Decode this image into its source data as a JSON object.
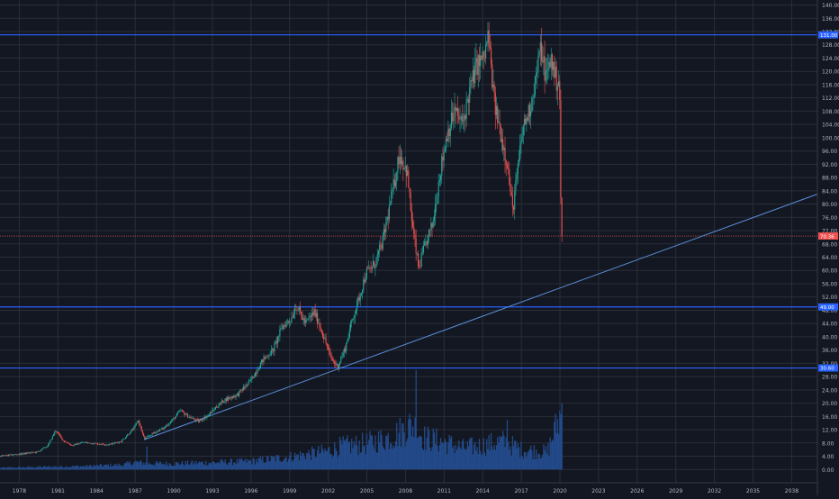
{
  "chart_data": {
    "type": "candlestick",
    "x_tick_labels": [
      "1978",
      "1981",
      "1984",
      "1987",
      "1990",
      "1993",
      "1996",
      "1999",
      "2002",
      "2005",
      "2008",
      "2011",
      "2014",
      "2017",
      "2020",
      "2023",
      "2026",
      "2029",
      "2032",
      "2035",
      "2038"
    ],
    "x_range": [
      1976.5,
      2040.0
    ],
    "price_axis": {
      "tick_labels": [
        "140.00",
        "136.00",
        "132.00",
        "128.00",
        "124.00",
        "120.00",
        "116.00",
        "112.00",
        "108.00",
        "104.00",
        "100.00",
        "96.00",
        "92.00",
        "88.00",
        "84.00",
        "80.00",
        "76.00",
        "72.00",
        "68.00",
        "64.00",
        "60.00",
        "56.00",
        "52.00",
        "48.00",
        "44.00",
        "40.00",
        "36.00",
        "32.00",
        "28.00",
        "24.00",
        "20.00",
        "16.00",
        "12.00",
        "8.00",
        "4.00",
        "0.00"
      ],
      "range": [
        -4.0,
        141.5
      ]
    },
    "horizontal_levels": [
      {
        "value": 131.0,
        "label": "131.00",
        "color": "#2962ff"
      },
      {
        "value": 49.0,
        "label": "49.00",
        "color": "#2962ff"
      },
      {
        "value": 30.6,
        "label": "30.60",
        "color": "#2962ff"
      }
    ],
    "current_price": {
      "value": 70.36,
      "label": "70.36",
      "color": "#ef5350"
    },
    "trendline": {
      "points": [
        [
          1987.7,
          9.0
        ],
        [
          2040.0,
          83.0
        ]
      ],
      "color": "#5b8fd6"
    },
    "price_path": [
      [
        1976.5,
        4.0
      ],
      [
        1978.0,
        4.6
      ],
      [
        1979.5,
        5.3
      ],
      [
        1980.3,
        7.2
      ],
      [
        1980.9,
        11.8
      ],
      [
        1981.5,
        8.7
      ],
      [
        1982.2,
        7.2
      ],
      [
        1983.0,
        8.2
      ],
      [
        1984.0,
        7.8
      ],
      [
        1985.0,
        7.5
      ],
      [
        1986.0,
        8.5
      ],
      [
        1987.0,
        12.5
      ],
      [
        1987.3,
        15.0
      ],
      [
        1987.8,
        9.2
      ],
      [
        1988.5,
        11.0
      ],
      [
        1989.3,
        12.5
      ],
      [
        1990.0,
        15.0
      ],
      [
        1990.6,
        17.8
      ],
      [
        1991.2,
        16.0
      ],
      [
        1992.0,
        14.5
      ],
      [
        1992.7,
        16.2
      ],
      [
        1993.3,
        18.5
      ],
      [
        1994.0,
        21.0
      ],
      [
        1995.0,
        22.5
      ],
      [
        1996.0,
        26.5
      ],
      [
        1997.0,
        33.0
      ],
      [
        1997.8,
        36.0
      ],
      [
        1998.5,
        43.0
      ],
      [
        1999.2,
        45.5
      ],
      [
        1999.6,
        49.5
      ],
      [
        2000.3,
        44.0
      ],
      [
        2001.0,
        47.5
      ],
      [
        2001.6,
        41.5
      ],
      [
        2002.3,
        33.5
      ],
      [
        2002.8,
        31.0
      ],
      [
        2003.4,
        36.5
      ],
      [
        2003.9,
        44.5
      ],
      [
        2004.5,
        52.0
      ],
      [
        2005.0,
        59.0
      ],
      [
        2005.7,
        62.0
      ],
      [
        2006.3,
        68.5
      ],
      [
        2007.0,
        82.0
      ],
      [
        2007.6,
        95.0
      ],
      [
        2008.2,
        90.0
      ],
      [
        2008.6,
        74.0
      ],
      [
        2009.1,
        60.5
      ],
      [
        2009.6,
        67.5
      ],
      [
        2010.2,
        74.0
      ],
      [
        2010.7,
        88.0
      ],
      [
        2011.3,
        101.0
      ],
      [
        2011.9,
        108.0
      ],
      [
        2012.5,
        104.0
      ],
      [
        2013.0,
        113.0
      ],
      [
        2013.6,
        122.0
      ],
      [
        2014.2,
        124.0
      ],
      [
        2014.5,
        131.0
      ],
      [
        2015.0,
        110.0
      ],
      [
        2015.5,
        101.0
      ],
      [
        2016.0,
        92.0
      ],
      [
        2016.4,
        78.0
      ],
      [
        2016.8,
        90.0
      ],
      [
        2017.2,
        103.0
      ],
      [
        2017.7,
        108.0
      ],
      [
        2018.2,
        118.0
      ],
      [
        2018.6,
        127.0
      ],
      [
        2019.0,
        118.0
      ],
      [
        2019.4,
        124.0
      ],
      [
        2019.8,
        117.0
      ],
      [
        2020.05,
        118.0
      ],
      [
        2020.12,
        90.0
      ],
      [
        2020.18,
        70.36
      ]
    ],
    "volume_envelope": [
      [
        1976.5,
        0.5
      ],
      [
        1980.0,
        0.8
      ],
      [
        1983.0,
        1.0
      ],
      [
        1986.0,
        1.4
      ],
      [
        1987.0,
        2.2
      ],
      [
        1988.0,
        1.8
      ],
      [
        1990.0,
        1.8
      ],
      [
        1993.0,
        2.1
      ],
      [
        1996.0,
        2.5
      ],
      [
        1999.0,
        3.8
      ],
      [
        2002.0,
        5.6
      ],
      [
        2003.0,
        7.0
      ],
      [
        2005.0,
        7.8
      ],
      [
        2007.0,
        10.0
      ],
      [
        2008.5,
        13.5
      ],
      [
        2009.5,
        9.5
      ],
      [
        2011.0,
        8.2
      ],
      [
        2012.5,
        6.5
      ],
      [
        2014.0,
        7.2
      ],
      [
        2015.5,
        8.5
      ],
      [
        2017.0,
        6.0
      ],
      [
        2019.0,
        5.2
      ],
      [
        2020.18,
        18.0
      ]
    ],
    "volume_spikes": [
      [
        1987.9,
        7.0
      ],
      [
        2008.8,
        30.0
      ],
      [
        2015.9,
        15.0
      ],
      [
        2020.15,
        20.0
      ]
    ],
    "colors": {
      "background": "#131722",
      "grid": "#2a2e39",
      "up": "#26a69a",
      "down": "#ef5350",
      "volume": "#234a8a",
      "axis_text": "#b2b5be",
      "level_label_bg": "#2962ff"
    }
  }
}
